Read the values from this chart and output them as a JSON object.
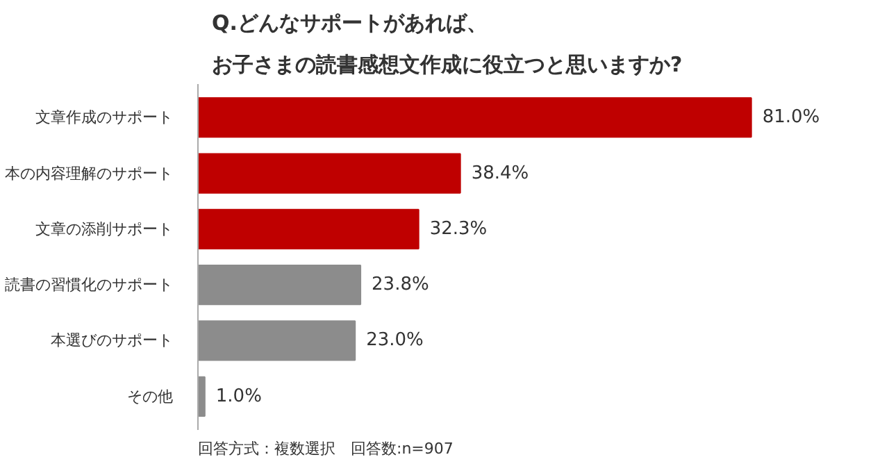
{
  "chart_data": {
    "type": "bar",
    "orientation": "horizontal",
    "title": "Q.どんなサポートがあれば、",
    "subtitle": "お子さまの読書感想文作成に役立つと思いますか?",
    "categories": [
      "文章作成のサポート",
      "本の内容理解のサポート",
      "文章の添削サポート",
      "読書の習慣化のサポート",
      "本選びのサポート",
      "その他"
    ],
    "values": [
      81.0,
      38.4,
      32.3,
      23.8,
      23.0,
      1.0
    ],
    "value_labels": [
      "81.0%",
      "38.4%",
      "32.3%",
      "23.8%",
      "23.0%",
      "1.0%"
    ],
    "colors": [
      "#bf0000",
      "#bf0000",
      "#bf0000",
      "#8c8c8c",
      "#8c8c8c",
      "#8c8c8c"
    ],
    "grid": false,
    "annotations": [
      "回答方式：複数選択　回答数:n=907"
    ]
  }
}
